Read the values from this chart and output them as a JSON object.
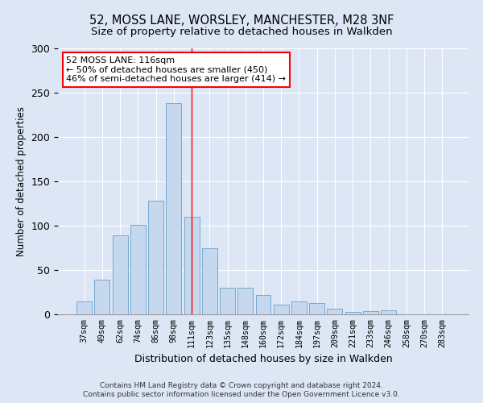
{
  "title1": "52, MOSS LANE, WORSLEY, MANCHESTER, M28 3NF",
  "title2": "Size of property relative to detached houses in Walkden",
  "xlabel": "Distribution of detached houses by size in Walkden",
  "ylabel": "Number of detached properties",
  "footer1": "Contains HM Land Registry data © Crown copyright and database right 2024.",
  "footer2": "Contains public sector information licensed under the Open Government Licence v3.0.",
  "categories": [
    "37sqm",
    "49sqm",
    "62sqm",
    "74sqm",
    "86sqm",
    "98sqm",
    "111sqm",
    "123sqm",
    "135sqm",
    "148sqm",
    "160sqm",
    "172sqm",
    "184sqm",
    "197sqm",
    "209sqm",
    "221sqm",
    "233sqm",
    "246sqm",
    "258sqm",
    "270sqm",
    "283sqm"
  ],
  "values": [
    15,
    39,
    89,
    101,
    128,
    238,
    110,
    75,
    30,
    30,
    22,
    11,
    15,
    13,
    6,
    3,
    4,
    5,
    0,
    0,
    0
  ],
  "bar_color": "#c5d8ed",
  "bar_edge_color": "#6a9fcc",
  "bar_linewidth": 0.6,
  "annotation_text": "52 MOSS LANE: 116sqm\n← 50% of detached houses are smaller (450)\n46% of semi-detached houses are larger (414) →",
  "annotation_box_color": "white",
  "annotation_box_edge_color": "red",
  "vline_x_index": 6.0,
  "vline_color": "red",
  "vline_linewidth": 1.0,
  "ylim": [
    0,
    300
  ],
  "yticks": [
    0,
    50,
    100,
    150,
    200,
    250,
    300
  ],
  "background_color": "#dce6f5",
  "grid_color": "white",
  "title_fontsize": 10.5,
  "subtitle_fontsize": 9.5,
  "annotation_fontsize": 8.0
}
